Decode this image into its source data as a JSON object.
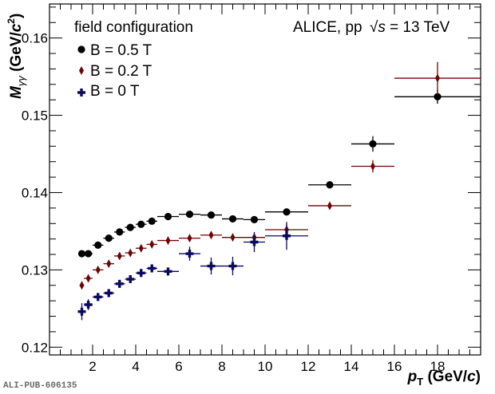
{
  "chart_data": {
    "type": "scatter",
    "title": "",
    "annotation": "ALICE, pp √s = 13 TeV",
    "annotation_parts": {
      "prefix": "ALICE, pp ",
      "sqrt_s": "s",
      "suffix": " = 13 TeV"
    },
    "xlabel": "p_T (GeV/c)",
    "xlabel_parts": {
      "p": "p",
      "sub": "T",
      "unit_open": " (GeV/",
      "unit_c": "c",
      "unit_close": ")"
    },
    "ylabel": "M_γγ (GeV/c²)",
    "ylabel_parts": {
      "m": "M",
      "sub": "γγ",
      "unit_open": " (GeV/",
      "unit_c": "c",
      "sup": "2",
      "unit_close": ")"
    },
    "xlim": [
      0,
      20
    ],
    "ylim": [
      0.119,
      0.1644
    ],
    "xticks": [
      2,
      4,
      6,
      8,
      10,
      12,
      14,
      16,
      18
    ],
    "xtick_labels": [
      "2",
      "4",
      "6",
      "8",
      "10",
      "12",
      "14",
      "16",
      "18"
    ],
    "x_minor_step": 0.5,
    "yticks": [
      0.12,
      0.13,
      0.14,
      0.15,
      0.16
    ],
    "ytick_labels": [
      "0.12",
      "0.13",
      "0.14",
      "0.15",
      "0.16"
    ],
    "y_minor_step": 0.002,
    "grid": false,
    "legend": {
      "title": "field configuration",
      "placement": "top-left",
      "entries": [
        "B = 0.5 T",
        "B = 0.2 T",
        "B = 0 T"
      ]
    },
    "x_bins": [
      [
        1.4,
        1.6
      ],
      [
        1.6,
        2.0
      ],
      [
        2.0,
        2.5
      ],
      [
        2.5,
        3.0
      ],
      [
        3.0,
        3.5
      ],
      [
        3.5,
        4.0
      ],
      [
        4.0,
        4.5
      ],
      [
        4.5,
        5.0
      ],
      [
        5.0,
        6.0
      ],
      [
        6.0,
        7.0
      ],
      [
        7.0,
        8.0
      ],
      [
        8.0,
        9.0
      ],
      [
        9.0,
        10.0
      ],
      [
        10.0,
        12.0
      ],
      [
        12.0,
        14.0
      ],
      [
        14.0,
        16.0
      ],
      [
        16.0,
        20.0
      ]
    ],
    "x": [
      1.5,
      1.8,
      2.25,
      2.75,
      3.25,
      3.75,
      4.25,
      4.75,
      5.5,
      6.5,
      7.5,
      8.5,
      9.5,
      11,
      13,
      15,
      18
    ],
    "series": [
      {
        "name": "B = 0.5 T",
        "color": "#000000",
        "marker": "circle",
        "values": [
          0.1321,
          0.1321,
          0.1332,
          0.1341,
          0.1349,
          0.1355,
          0.1359,
          0.1363,
          0.1369,
          0.1372,
          0.1371,
          0.1366,
          0.1365,
          0.1375,
          0.141,
          0.1463,
          0.1524
        ],
        "errors": [
          0.0002,
          0.0002,
          0.0002,
          0.0002,
          0.0002,
          0.0002,
          0.0002,
          0.0002,
          0.0002,
          0.0002,
          0.0002,
          0.0002,
          0.0002,
          0.0003,
          0.0004,
          0.001,
          0.0009
        ]
      },
      {
        "name": "B = 0.2 T",
        "color": "#6e0505",
        "marker": "diamond",
        "values": [
          0.128,
          0.1289,
          0.13,
          0.1308,
          0.1318,
          0.1322,
          0.1328,
          0.1333,
          0.1338,
          0.1341,
          0.1345,
          0.1342,
          0.1342,
          0.1352,
          0.1383,
          0.1434,
          0.1548
        ],
        "errors": [
          0.0003,
          0.0003,
          0.0003,
          0.0003,
          0.0003,
          0.0003,
          0.0003,
          0.0003,
          0.0003,
          0.0003,
          0.0003,
          0.0003,
          0.0004,
          0.0007,
          0.0004,
          0.0008,
          0.0021
        ]
      },
      {
        "name": "B = 0 T",
        "color": "#0a0a5e",
        "marker": "cross",
        "values": [
          0.1246,
          0.1255,
          0.1265,
          0.127,
          0.1282,
          0.1288,
          0.1296,
          0.1302,
          0.1298,
          0.1321,
          0.1305,
          0.1305,
          0.1336,
          0.1344
        ],
        "errors": [
          0.0011,
          0.0007,
          0.0004,
          0.0004,
          0.0004,
          0.0004,
          0.0005,
          0.0004,
          0.0004,
          0.0009,
          0.0011,
          0.0012,
          0.0013,
          0.0018
        ]
      }
    ]
  },
  "footer": {
    "publication_id": "ALI-PUB-606135"
  }
}
